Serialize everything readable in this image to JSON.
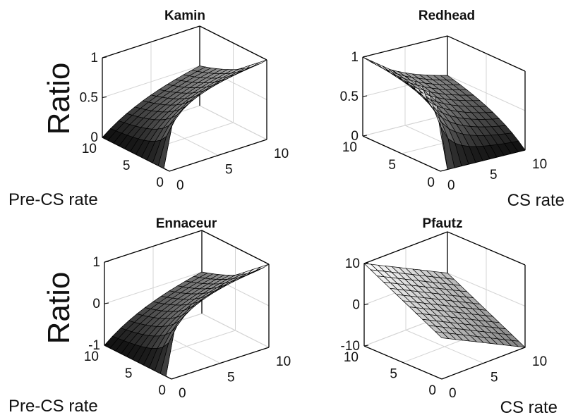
{
  "row_labels": {
    "top": "Ratio",
    "bottom": "Ratio"
  },
  "bottom_labels": {
    "top_left": "Pre-CS rate",
    "top_right": "CS rate",
    "bottom_left": "Pre-CS rate",
    "bottom_right": "CS rate"
  },
  "chart_data": [
    {
      "type": "surface",
      "title": "Kamin",
      "x_label": "CS rate",
      "y_label": "Pre-CS rate",
      "z_label": "Ratio",
      "x_range": [
        0,
        10
      ],
      "y_range": [
        0,
        10
      ],
      "z_range": [
        0,
        1
      ],
      "x_ticks": [
        "0",
        "5",
        "10"
      ],
      "y_ticks": [
        "0",
        "5",
        "10"
      ],
      "z_ticks": [
        {
          "v": 0,
          "t": "0"
        },
        {
          "v": 0.5,
          "t": "0.5"
        },
        {
          "v": 1,
          "t": "1"
        }
      ],
      "formula": "x/(x+y)",
      "grid_n": 12,
      "shade": "dark"
    },
    {
      "type": "surface",
      "title": "Redhead",
      "x_label": "CS rate",
      "y_label": "Pre-CS rate",
      "z_label": "Ratio",
      "x_range": [
        0,
        10
      ],
      "y_range": [
        0,
        10
      ],
      "z_range": [
        0,
        1
      ],
      "x_ticks": [
        "0",
        "5",
        "10"
      ],
      "y_ticks": [
        "0",
        "5",
        "10"
      ],
      "z_ticks": [
        {
          "v": 0,
          "t": "0"
        },
        {
          "v": 0.5,
          "t": "0.5"
        },
        {
          "v": 1,
          "t": "1"
        }
      ],
      "formula": "y/(x+y)",
      "grid_n": 12,
      "shade": "dark"
    },
    {
      "type": "surface",
      "title": "Ennaceur",
      "x_label": "CS rate",
      "y_label": "Pre-CS rate",
      "z_label": "Ratio",
      "x_range": [
        0,
        10
      ],
      "y_range": [
        0,
        10
      ],
      "z_range": [
        -1,
        1
      ],
      "x_ticks": [
        "0",
        "5",
        "10"
      ],
      "y_ticks": [
        "0",
        "5",
        "10"
      ],
      "z_ticks": [
        {
          "v": -1,
          "t": "-1"
        },
        {
          "v": 0,
          "t": "0"
        },
        {
          "v": 1,
          "t": "1"
        }
      ],
      "formula": "(x-y)/(x+y)",
      "grid_n": 12,
      "shade": "dark"
    },
    {
      "type": "surface",
      "title": "Pfautz",
      "x_label": "CS rate",
      "y_label": "Pre-CS rate",
      "z_label": "Ratio",
      "x_range": [
        0,
        10
      ],
      "y_range": [
        0,
        10
      ],
      "z_range": [
        -10,
        10
      ],
      "x_ticks": [
        "0",
        "5",
        "10"
      ],
      "y_ticks": [
        "0",
        "5",
        "10"
      ],
      "z_ticks": [
        {
          "v": -10,
          "t": "-10"
        },
        {
          "v": 0,
          "t": "0"
        },
        {
          "v": 10,
          "t": "10"
        }
      ],
      "formula": "y-x",
      "grid_n": 12,
      "shade": "light"
    }
  ]
}
